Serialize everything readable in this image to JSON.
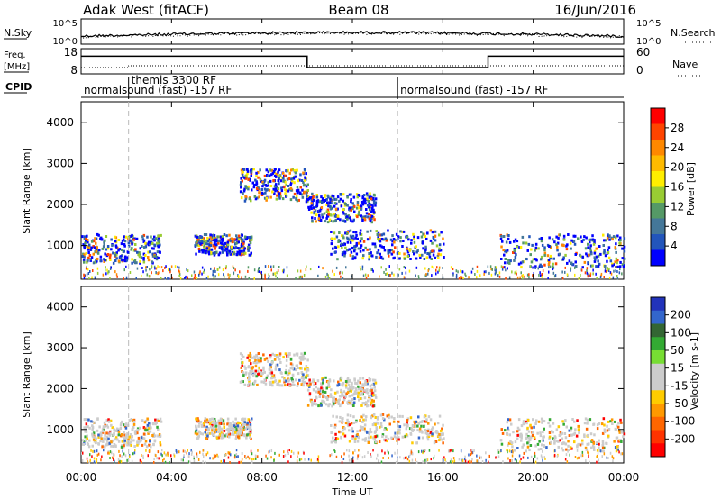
{
  "header": {
    "radar": "Adak West (fitACF)",
    "beam": "Beam 08",
    "date": "16/Jun/2016"
  },
  "noise_panel": {
    "left_label": "N.Sky",
    "right_label": "N.Search",
    "left_ticks": [
      "10^5",
      "10^0"
    ],
    "right_ticks": [
      "10^5",
      "10^0"
    ]
  },
  "freq_panel": {
    "left_label_line1": "Freq.",
    "left_label_line2": "[MHz]",
    "right_label": "Nave",
    "left_ticks": [
      "18",
      "8"
    ],
    "right_ticks": [
      "60",
      "0"
    ]
  },
  "cpid_panel": {
    "label": "CPID",
    "segments": [
      {
        "start_hour": 0,
        "text": "normalsound (fast) -157 RF"
      },
      {
        "start_hour": 2.1,
        "text": "themis 3300 RF"
      },
      {
        "start_hour": 14.0,
        "text": "normalsound (fast) -157 RF"
      }
    ]
  },
  "x_axis": {
    "label": "Time UT",
    "ticks": [
      "00:00",
      "04:00",
      "08:00",
      "12:00",
      "16:00",
      "20:00",
      "00:00"
    ]
  },
  "power_panel": {
    "ylabel": "Slant Range [km]",
    "yticks": [
      "4000",
      "3000",
      "2000",
      "1000"
    ],
    "colorbar_label": "Power [dB]",
    "colorbar_ticks": [
      "28",
      "24",
      "20",
      "16",
      "12",
      "8",
      "4"
    ],
    "colorbar_colors": [
      "#ff0000",
      "#ff4400",
      "#ff8800",
      "#ffbb00",
      "#ffee00",
      "#99cc33",
      "#559966",
      "#447799",
      "#2255bb",
      "#0000ff"
    ]
  },
  "velocity_panel": {
    "ylabel": "Slant Range [km]",
    "yticks": [
      "4000",
      "3000",
      "2000",
      "1000"
    ],
    "colorbar_label": "Velocity [m s-1]",
    "colorbar_ticks": [
      "200",
      "100",
      "50",
      "15",
      "-15",
      "-50",
      "-100",
      "-200"
    ],
    "colorbar_colors": [
      "#2233bb",
      "#3366cc",
      "#336633",
      "#33aa33",
      "#77dd33",
      "#cccccc",
      "#cccccc",
      "#ffcc00",
      "#ff9900",
      "#ff6600",
      "#ff3300",
      "#ff0000"
    ]
  },
  "chart_data": {
    "type": "heatmap",
    "x_range_hours": [
      0,
      24
    ],
    "y_range_km": [
      180,
      4500
    ],
    "freq_mhz": [
      {
        "from_hour": 0,
        "to_hour": 10,
        "value": 15
      },
      {
        "from_hour": 10,
        "to_hour": 18,
        "value": 10.5
      },
      {
        "from_hour": 18,
        "to_hour": 24,
        "value": 15
      }
    ],
    "power_echo_regions": [
      {
        "hours": [
          0.0,
          3.5
        ],
        "km": [
          600,
          1300
        ],
        "level": "weak-moderate"
      },
      {
        "hours": [
          5.0,
          7.5
        ],
        "km": [
          800,
          1300
        ],
        "level": "weak"
      },
      {
        "hours": [
          7.0,
          10.0
        ],
        "km": [
          2100,
          2900
        ],
        "level": "weak"
      },
      {
        "hours": [
          10.0,
          13.0
        ],
        "km": [
          1600,
          2300
        ],
        "level": "moderate-strong"
      },
      {
        "hours": [
          11.0,
          16.0
        ],
        "km": [
          700,
          1400
        ],
        "level": "weak-moderate"
      },
      {
        "hours": [
          18.5,
          24.0
        ],
        "km": [
          500,
          1300
        ],
        "level": "weak"
      }
    ]
  }
}
